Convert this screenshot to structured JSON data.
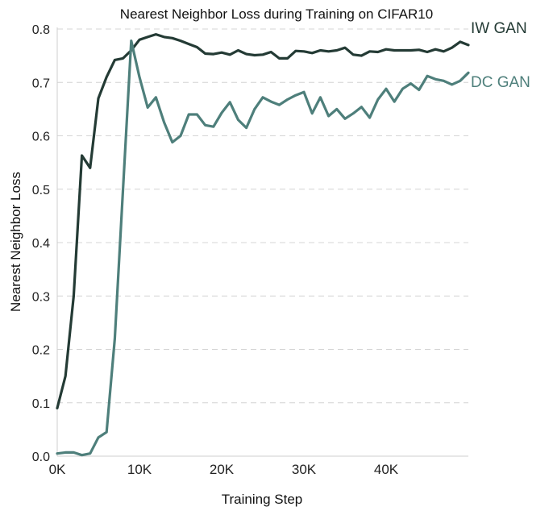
{
  "chart_data": {
    "type": "line",
    "title": "Nearest Neighbor Loss during Training on CIFAR10",
    "xlabel": "Training Step",
    "ylabel": "Nearest Neighbor Loss",
    "xlim": [
      0,
      50000
    ],
    "ylim": [
      0,
      0.8
    ],
    "xticks": [
      0,
      10000,
      20000,
      30000,
      40000
    ],
    "xtick_labels": [
      "0K",
      "10K",
      "20K",
      "30K",
      "40K"
    ],
    "yticks": [
      0.0,
      0.1,
      0.2,
      0.3,
      0.4,
      0.5,
      0.6,
      0.7,
      0.8
    ],
    "ytick_labels": [
      "0.0",
      "0.1",
      "0.2",
      "0.3",
      "0.4",
      "0.5",
      "0.6",
      "0.7",
      "0.8"
    ],
    "grid": "horizontal-dashed",
    "series": [
      {
        "name": "IW GAN",
        "color": "#243b35",
        "x": [
          0,
          1000,
          2000,
          3000,
          4000,
          5000,
          6000,
          7000,
          8000,
          9000,
          10000,
          11000,
          12000,
          13000,
          14000,
          15000,
          16000,
          17000,
          18000,
          19000,
          20000,
          21000,
          22000,
          23000,
          24000,
          25000,
          26000,
          27000,
          28000,
          29000,
          30000,
          31000,
          32000,
          33000,
          34000,
          35000,
          36000,
          37000,
          38000,
          39000,
          40000,
          41000,
          42000,
          43000,
          44000,
          45000,
          46000,
          47000,
          48000,
          49000,
          50000
        ],
        "values": [
          0.09,
          0.15,
          0.3,
          0.563,
          0.54,
          0.67,
          0.71,
          0.742,
          0.745,
          0.76,
          0.78,
          0.785,
          0.79,
          0.785,
          0.783,
          0.778,
          0.772,
          0.766,
          0.754,
          0.753,
          0.756,
          0.752,
          0.76,
          0.753,
          0.751,
          0.752,
          0.757,
          0.745,
          0.745,
          0.759,
          0.758,
          0.755,
          0.76,
          0.758,
          0.76,
          0.765,
          0.752,
          0.75,
          0.758,
          0.757,
          0.762,
          0.76,
          0.76,
          0.76,
          0.761,
          0.757,
          0.762,
          0.758,
          0.765,
          0.776,
          0.77
        ]
      },
      {
        "name": "DC GAN",
        "color": "#4e7f7b",
        "x": [
          0,
          1000,
          2000,
          3000,
          4000,
          5000,
          6000,
          7000,
          8000,
          9000,
          10000,
          11000,
          12000,
          13000,
          14000,
          15000,
          16000,
          17000,
          18000,
          19000,
          20000,
          21000,
          22000,
          23000,
          24000,
          25000,
          26000,
          27000,
          28000,
          29000,
          30000,
          31000,
          32000,
          33000,
          34000,
          35000,
          36000,
          37000,
          38000,
          39000,
          40000,
          41000,
          42000,
          43000,
          44000,
          45000,
          46000,
          47000,
          48000,
          49000,
          50000
        ],
        "values": [
          0.005,
          0.007,
          0.007,
          0.002,
          0.005,
          0.035,
          0.045,
          0.22,
          0.5,
          0.778,
          0.71,
          0.653,
          0.672,
          0.625,
          0.588,
          0.6,
          0.64,
          0.64,
          0.62,
          0.617,
          0.643,
          0.663,
          0.63,
          0.615,
          0.65,
          0.672,
          0.664,
          0.658,
          0.668,
          0.676,
          0.682,
          0.642,
          0.672,
          0.637,
          0.65,
          0.632,
          0.642,
          0.654,
          0.634,
          0.668,
          0.688,
          0.664,
          0.688,
          0.698,
          0.686,
          0.712,
          0.706,
          0.703,
          0.696,
          0.703,
          0.718
        ]
      }
    ]
  }
}
